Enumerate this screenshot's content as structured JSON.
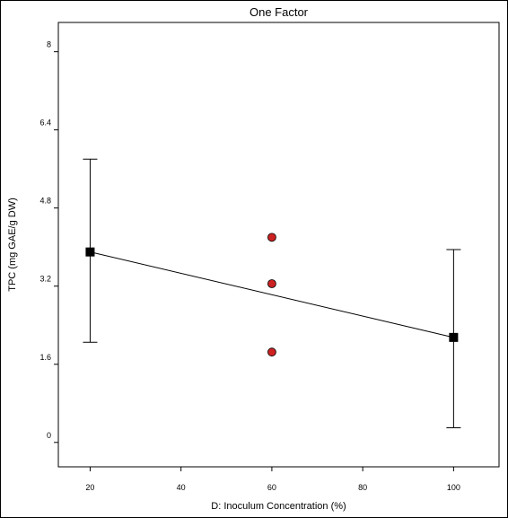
{
  "chart_data": {
    "type": "scatter",
    "title": "One Factor",
    "xlabel": "D: Inoculum Concentration (%)",
    "ylabel": "TPC (mg GAE/g DW)",
    "xlim": [
      13,
      110
    ],
    "ylim": [
      -0.5,
      8.6
    ],
    "xticks": [
      "20",
      "40",
      "60",
      "80",
      "100"
    ],
    "yticks": [
      "0",
      "1.6",
      "3.2",
      "4.8",
      "6.4",
      "8"
    ],
    "grid": false,
    "fit_line": {
      "x": [
        20,
        100
      ],
      "y": [
        3.9,
        2.15
      ]
    },
    "factor_points": [
      {
        "x": 20,
        "y": 3.9,
        "low": 2.05,
        "high": 5.8
      },
      {
        "x": 100,
        "y": 2.15,
        "low": 0.3,
        "high": 3.95
      }
    ],
    "design_points": [
      {
        "x": 60,
        "y": 4.2
      },
      {
        "x": 60,
        "y": 3.25
      },
      {
        "x": 60,
        "y": 1.85
      }
    ],
    "colors": {
      "design_point": "#cc2222",
      "factor_point": "#000000",
      "line": "#000000"
    }
  }
}
